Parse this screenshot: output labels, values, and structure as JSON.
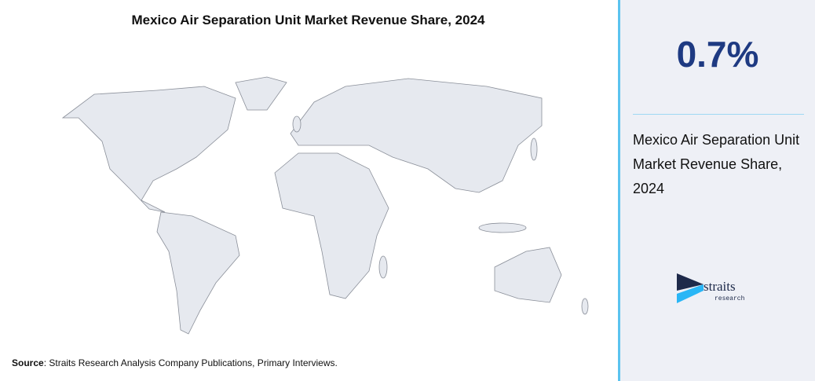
{
  "header": {
    "title": "Mexico Air Separation Unit Market Revenue Share, 2024"
  },
  "stat": {
    "value": "0.7%",
    "label": "Mexico Air Separation Unit Market Revenue Share, 2024"
  },
  "source": {
    "label": "Source",
    "text": ": Straits Research Analysis Company Publications, Primary Interviews."
  },
  "logo": {
    "name": "straits",
    "tagline": "research"
  }
}
